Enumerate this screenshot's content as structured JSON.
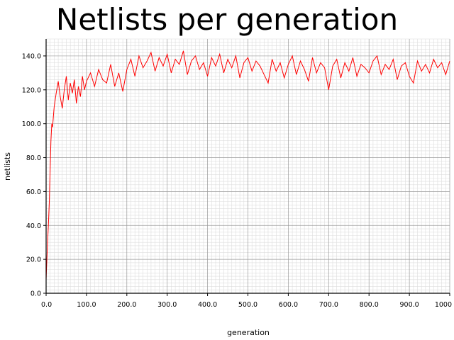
{
  "chart_data": {
    "type": "line",
    "title": "Netlists per generation",
    "xlabel": "generation",
    "ylabel": "netlists",
    "xlim": [
      0,
      1000
    ],
    "ylim": [
      0,
      150
    ],
    "grid": true,
    "x_ticks": [
      {
        "value": 0,
        "label": "0.0"
      },
      {
        "value": 100,
        "label": "100.0"
      },
      {
        "value": 200,
        "label": "200.0"
      },
      {
        "value": 300,
        "label": "300.0"
      },
      {
        "value": 400,
        "label": "400.0"
      },
      {
        "value": 500,
        "label": "500.0"
      },
      {
        "value": 600,
        "label": "600.0"
      },
      {
        "value": 700,
        "label": "700.0"
      },
      {
        "value": 800,
        "label": "800.0"
      },
      {
        "value": 900,
        "label": "900.0"
      },
      {
        "value": 1000,
        "label": "1000"
      }
    ],
    "y_ticks": [
      {
        "value": 0,
        "label": "0.0"
      },
      {
        "value": 20,
        "label": "20.0"
      },
      {
        "value": 40,
        "label": "40.0"
      },
      {
        "value": 60,
        "label": "60.0"
      },
      {
        "value": 80,
        "label": "80.0"
      },
      {
        "value": 100,
        "label": "100.0"
      },
      {
        "value": 120,
        "label": "120.0"
      },
      {
        "value": 140,
        "label": "140.0"
      }
    ],
    "series": [
      {
        "color": "#ff0000",
        "x": [
          0,
          2,
          4,
          6,
          8,
          10,
          12,
          14,
          16,
          18,
          20,
          25,
          30,
          35,
          40,
          45,
          50,
          55,
          60,
          65,
          70,
          75,
          80,
          85,
          90,
          95,
          100,
          110,
          120,
          130,
          140,
          150,
          160,
          170,
          180,
          190,
          200,
          210,
          220,
          230,
          240,
          250,
          260,
          270,
          280,
          290,
          300,
          310,
          320,
          330,
          340,
          350,
          360,
          370,
          380,
          390,
          400,
          410,
          420,
          430,
          440,
          450,
          460,
          470,
          480,
          490,
          500,
          510,
          520,
          530,
          540,
          550,
          560,
          570,
          580,
          590,
          600,
          610,
          620,
          630,
          640,
          650,
          660,
          670,
          680,
          690,
          700,
          710,
          720,
          730,
          740,
          750,
          760,
          770,
          780,
          790,
          800,
          810,
          820,
          830,
          840,
          850,
          860,
          870,
          880,
          890,
          900,
          910,
          920,
          930,
          940,
          950,
          960,
          970,
          980,
          990,
          1000
        ],
        "y": [
          8,
          20,
          32,
          42,
          55,
          73,
          90,
          100,
          98,
          104,
          110,
          118,
          125,
          116,
          109,
          120,
          128,
          114,
          124,
          118,
          126,
          112,
          122,
          116,
          128,
          120,
          125,
          130,
          122,
          132,
          126,
          124,
          135,
          122,
          130,
          119,
          132,
          138,
          128,
          140,
          133,
          137,
          142,
          131,
          139,
          134,
          141,
          130,
          138,
          135,
          143,
          129,
          137,
          140,
          132,
          136,
          128,
          139,
          134,
          141,
          130,
          138,
          133,
          140,
          127,
          136,
          139,
          131,
          137,
          134,
          129,
          124,
          138,
          131,
          136,
          127,
          135,
          140,
          129,
          137,
          132,
          125,
          139,
          130,
          136,
          133,
          120,
          134,
          138,
          127,
          136,
          131,
          139,
          128,
          135,
          133,
          130,
          137,
          140,
          129,
          135,
          132,
          138,
          126,
          134,
          136,
          128,
          124,
          137,
          131,
          135,
          130,
          138,
          133,
          136,
          129,
          137
        ]
      }
    ]
  }
}
